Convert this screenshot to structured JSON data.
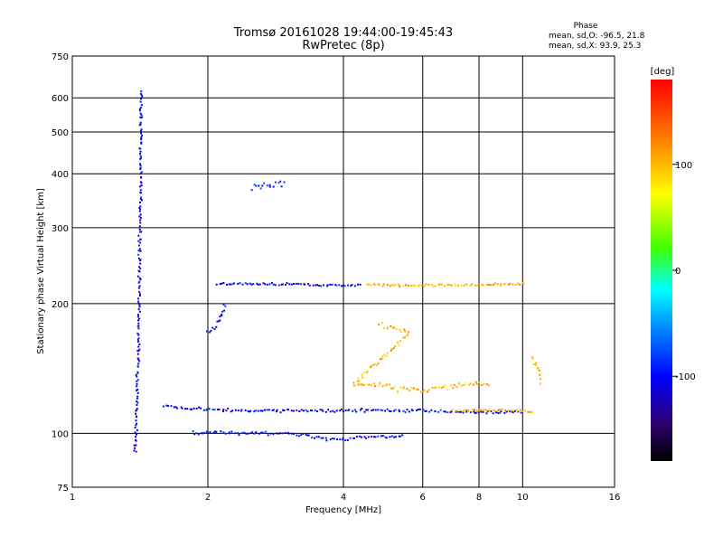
{
  "chart_data": {
    "type": "scatter",
    "title": "Tromsø 20161028 19:44:00-19:45:43",
    "subtitle": "RwPretec (8p)",
    "xlabel": "Frequency [MHz]",
    "ylabel": "Stationary phase Virtual Height [km]",
    "x_scale": "log",
    "y_scale": "log",
    "xlim": [
      1,
      16
    ],
    "ylim": [
      75,
      750
    ],
    "x_ticks": [
      1,
      2,
      4,
      6,
      8,
      10,
      16
    ],
    "y_ticks": [
      75,
      100,
      200,
      300,
      400,
      500,
      600,
      750
    ],
    "grid": true,
    "stats": {
      "heading": "Phase",
      "line_o": "mean, sd,O: -96.5, 21.8",
      "line_x": "mean, sd,X:  93.9, 25.3"
    },
    "colorbar": {
      "label": "[deg]",
      "range": [
        -180,
        180
      ],
      "ticks": [
        100,
        0,
        -100
      ],
      "colormap": "rainbow"
    },
    "traces": [
      {
        "desc": "O-mode E layer",
        "points": [
          [
            1.85,
            100
          ],
          [
            1.95,
            100
          ],
          [
            2.1,
            101
          ],
          [
            2.3,
            100
          ],
          [
            2.6,
            100
          ],
          [
            3.0,
            100
          ],
          [
            3.3,
            99
          ],
          [
            3.6,
            97
          ],
          [
            4.0,
            97
          ],
          [
            4.5,
            98
          ],
          [
            5.0,
            98
          ],
          [
            5.5,
            99
          ]
        ],
        "phase": -100,
        "spread": 2.5
      },
      {
        "desc": "O-mode F layer lower",
        "points": [
          [
            1.6,
            116
          ],
          [
            1.8,
            114
          ],
          [
            2.0,
            114
          ],
          [
            2.5,
            113
          ],
          [
            3.0,
            113
          ],
          [
            3.5,
            113
          ],
          [
            4.0,
            113
          ],
          [
            5.0,
            113
          ],
          [
            6.0,
            113
          ],
          [
            7.0,
            112
          ],
          [
            8.0,
            112
          ],
          [
            9.0,
            112
          ],
          [
            10.0,
            112
          ]
        ],
        "phase": -100,
        "spread": 2.5
      },
      {
        "desc": "X-mode F layer lower",
        "points": [
          [
            7.0,
            113
          ],
          [
            8.0,
            113
          ],
          [
            9.0,
            113
          ],
          [
            10.0,
            113
          ],
          [
            10.6,
            112
          ]
        ],
        "phase": 100,
        "spread": 2
      },
      {
        "desc": "F2 O-mode",
        "points": [
          [
            2.1,
            222
          ],
          [
            2.5,
            222
          ],
          [
            3.0,
            222
          ],
          [
            3.5,
            221
          ],
          [
            4.0,
            221
          ],
          [
            4.4,
            221
          ]
        ],
        "phase": -100,
        "spread": 2
      },
      {
        "desc": "F2 X-mode",
        "points": [
          [
            4.5,
            221
          ],
          [
            5.0,
            221
          ],
          [
            5.5,
            220
          ],
          [
            7.2,
            221
          ],
          [
            8.5,
            221
          ],
          [
            9.5,
            222
          ],
          [
            10.2,
            222
          ]
        ],
        "phase": 100,
        "spread": 2
      },
      {
        "desc": "spread echoes 1.4 MHz",
        "points": [
          [
            1.38,
            90
          ],
          [
            1.4,
            150
          ],
          [
            1.41,
            250
          ],
          [
            1.42,
            400
          ],
          [
            1.42,
            630
          ]
        ],
        "phase": -105,
        "spread": 3
      },
      {
        "desc": "oblique echoes near 3 MHz",
        "points": [
          [
            2.5,
            370
          ],
          [
            2.8,
            380
          ],
          [
            3.0,
            380
          ]
        ],
        "phase": -90,
        "spread": 5
      },
      {
        "desc": "spread echoes near 2 MHz",
        "points": [
          [
            2.0,
            170
          ],
          [
            2.1,
            180
          ],
          [
            2.2,
            200
          ]
        ],
        "phase": -100,
        "spread": 5
      },
      {
        "desc": "mixed echoes near 5 MHz",
        "points": [
          [
            4.8,
            180
          ],
          [
            5.2,
            175
          ],
          [
            5.6,
            170
          ],
          [
            4.2,
            130
          ],
          [
            5.0,
            128
          ],
          [
            6.0,
            126
          ],
          [
            7.5,
            130
          ],
          [
            8.5,
            130
          ]
        ],
        "phase": 100,
        "spread": 5
      },
      {
        "desc": "upper echoes near 10 MHz",
        "points": [
          [
            10.5,
            150
          ],
          [
            10.8,
            140
          ],
          [
            11.0,
            130
          ]
        ],
        "phase": 100,
        "spread": 6
      }
    ]
  }
}
